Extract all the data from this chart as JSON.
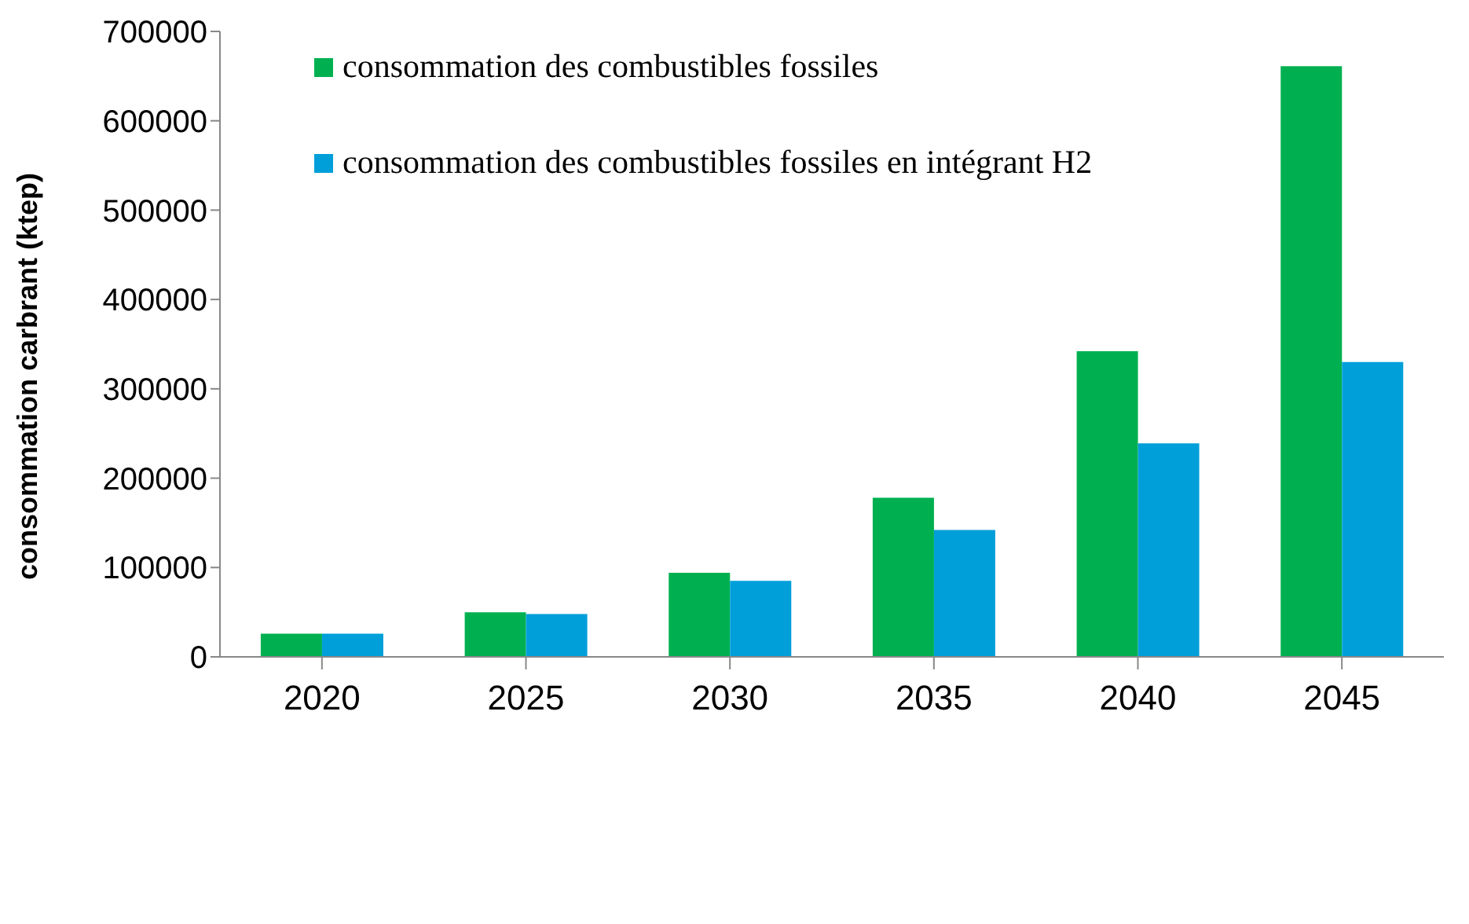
{
  "chart_data": {
    "type": "bar",
    "ylabel": "consommation carbrant (ktep)",
    "categories": [
      "2020",
      "2025",
      "2030",
      "2035",
      "2040",
      "2045"
    ],
    "series": [
      {
        "name": "consommation des combustibles fossiles",
        "color": "#00b050",
        "values": [
          26000,
          50000,
          94000,
          178000,
          342000,
          661000
        ]
      },
      {
        "name": "consommation des combustibles fossiles en intégrant H2",
        "color": "#009fda",
        "values": [
          26000,
          48000,
          85000,
          142000,
          239000,
          330000
        ]
      }
    ],
    "ylim": [
      0,
      700000
    ],
    "yticks": [
      0,
      100000,
      200000,
      300000,
      400000,
      500000,
      600000,
      700000
    ],
    "grid": false,
    "legend": "top left"
  }
}
